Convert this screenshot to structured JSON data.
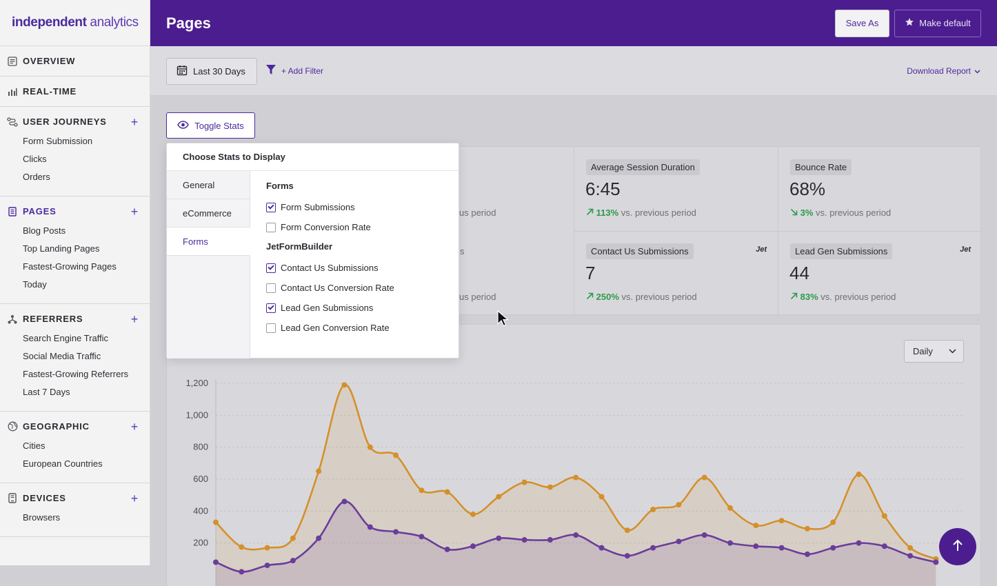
{
  "app": {
    "logo_bold": "independent",
    "logo_light": " analytics"
  },
  "header": {
    "title": "Pages",
    "save_as": "Save As",
    "make_default": "Make default"
  },
  "toolbar": {
    "date_range": "Last 30 Days",
    "add_filter": "+ Add Filter",
    "download": "Download Report"
  },
  "sidebar": {
    "sections": [
      {
        "label": "OVERVIEW",
        "icon": "overview-icon",
        "items": []
      },
      {
        "label": "REAL-TIME",
        "icon": "bar-chart-icon",
        "items": []
      },
      {
        "label": "USER JOURNEYS",
        "icon": "journey-icon",
        "plus": "+",
        "items": [
          "Form Submission",
          "Clicks",
          "Orders"
        ]
      },
      {
        "label": "PAGES",
        "icon": "pages-icon",
        "plus": "+",
        "active": true,
        "items": [
          "Blog Posts",
          "Top Landing Pages",
          "Fastest-Growing Pages",
          "Today"
        ]
      },
      {
        "label": "REFERRERS",
        "icon": "referrers-icon",
        "plus": "+",
        "items": [
          "Search Engine Traffic",
          "Social Media Traffic",
          "Fastest-Growing Referrers",
          "Last 7 Days"
        ]
      },
      {
        "label": "GEOGRAPHIC",
        "icon": "globe-icon",
        "plus": "+",
        "items": [
          "Cities",
          "European Countries"
        ]
      },
      {
        "label": "DEVICES",
        "icon": "device-icon",
        "plus": "+",
        "items": [
          "Browsers"
        ]
      }
    ]
  },
  "toggle_stats": {
    "label": "Toggle Stats"
  },
  "stats": {
    "partial_top": "us period",
    "partial_mid": "s",
    "partial_bottom": "us period",
    "avg_session": {
      "label": "Average Session Duration",
      "value": "6:45",
      "pct": "113%",
      "rest": "vs. previous period",
      "dir": "up"
    },
    "bounce": {
      "label": "Bounce Rate",
      "value": "68%",
      "pct": "3%",
      "rest": "vs. previous period",
      "dir": "down"
    },
    "contact": {
      "label": "Contact Us Submissions",
      "value": "7",
      "pct": "250%",
      "rest": "vs. previous period",
      "dir": "up",
      "badge": "Jet"
    },
    "leadgen": {
      "label": "Lead Gen Submissions",
      "value": "44",
      "pct": "83%",
      "rest": "vs. previous period",
      "dir": "up",
      "badge": "Jet"
    }
  },
  "popup": {
    "title": "Choose Stats to Display",
    "tabs": [
      "General",
      "eCommerce",
      "Forms"
    ],
    "active_tab": "Forms",
    "groups": [
      {
        "name": "Forms",
        "options": [
          {
            "label": "Form Submissions",
            "checked": true
          },
          {
            "label": "Form Conversion Rate",
            "checked": false
          }
        ]
      },
      {
        "name": "JetFormBuilder",
        "options": [
          {
            "label": "Contact Us Submissions",
            "checked": true
          },
          {
            "label": "Contact Us Conversion Rate",
            "checked": false
          },
          {
            "label": "Lead Gen Submissions",
            "checked": true
          },
          {
            "label": "Lead Gen Conversion Rate",
            "checked": false
          }
        ]
      }
    ]
  },
  "chart": {
    "interval": "Daily"
  },
  "chart_data": {
    "type": "area",
    "ylim": [
      0,
      1200
    ],
    "yticks": [
      "1,200",
      "1,000",
      "800",
      "600",
      "400",
      "200"
    ],
    "series": [
      {
        "color": "#d4902a",
        "values": [
          330,
          175,
          170,
          230,
          650,
          1190,
          800,
          750,
          530,
          520,
          380,
          490,
          580,
          550,
          610,
          490,
          280,
          410,
          440,
          610,
          420,
          310,
          340,
          290,
          330,
          630,
          370,
          170,
          100
        ]
      },
      {
        "color": "#6a3d9a",
        "values": [
          80,
          20,
          60,
          90,
          230,
          460,
          300,
          270,
          240,
          160,
          180,
          230,
          220,
          220,
          250,
          170,
          120,
          170,
          210,
          250,
          200,
          180,
          170,
          130,
          170,
          200,
          180,
          120,
          80
        ]
      }
    ]
  }
}
